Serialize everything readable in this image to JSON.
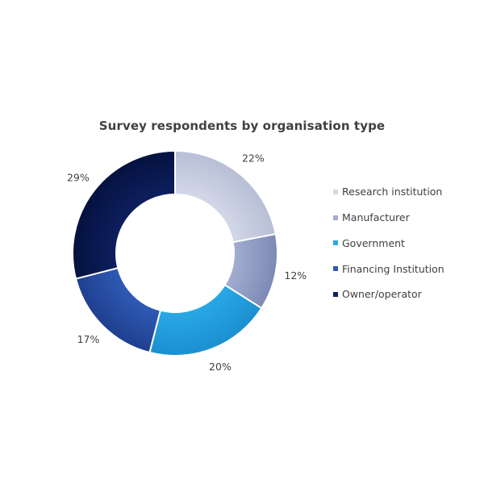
{
  "chart_data": {
    "type": "pie",
    "title": "Survey respondents by organisation type",
    "slices": [
      {
        "label": "Research institution",
        "value": 22,
        "display": "22%",
        "color": "#d3d8e8",
        "shade": "#b7bfd6"
      },
      {
        "label": "Manufacturer",
        "value": 12,
        "display": "12%",
        "color": "#a3aed0",
        "shade": "#7c89b4"
      },
      {
        "label": "Government",
        "value": 20,
        "display": "20%",
        "color": "#29a9e6",
        "shade": "#1b8fd0"
      },
      {
        "label": "Financing Institution",
        "value": 17,
        "display": "17%",
        "color": "#2e5bb6",
        "shade": "#1f3f8f"
      },
      {
        "label": "Owner/operator",
        "value": 29,
        "display": "29%",
        "color": "#0d1f5e",
        "shade": "#05123f"
      }
    ],
    "legend_position": "right"
  }
}
